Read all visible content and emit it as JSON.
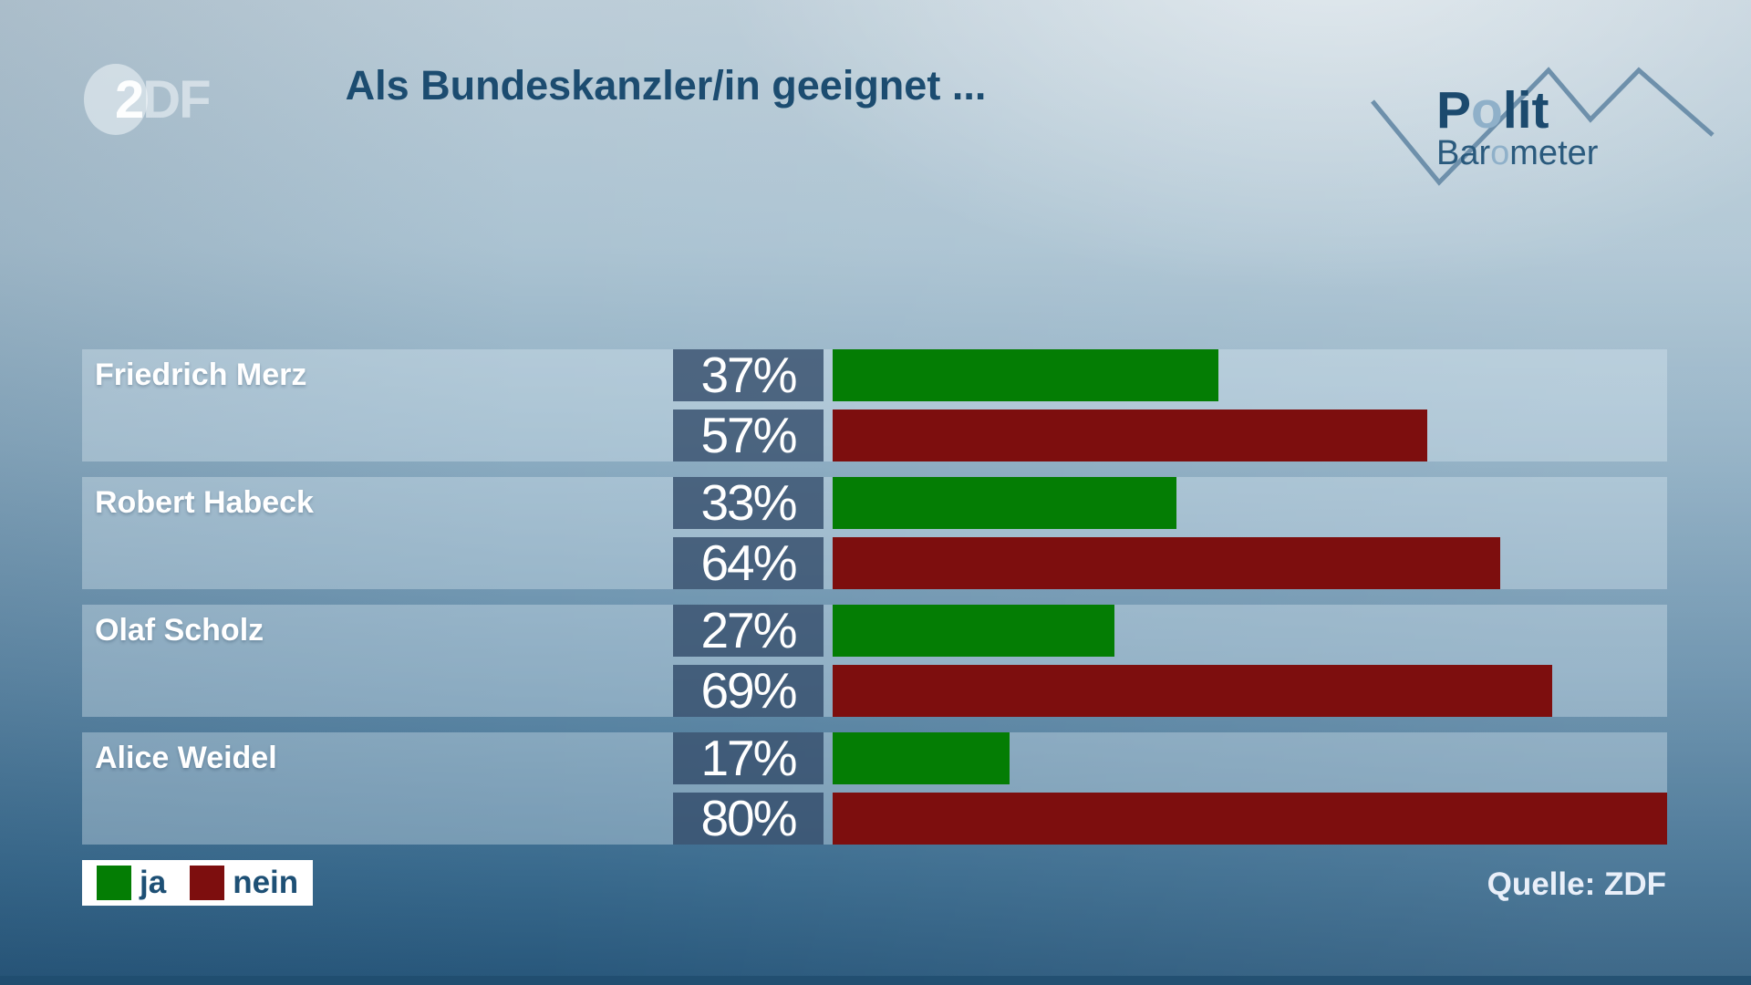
{
  "header": {
    "zdf_logo": [
      "2",
      "DF"
    ],
    "title": "Als Bundeskanzler/in geeignet ..."
  },
  "brand": {
    "polit": [
      "P",
      "o",
      "lit"
    ],
    "barometer": [
      "Bar",
      "o",
      "meter"
    ]
  },
  "chart_data": {
    "type": "bar",
    "orientation": "horizontal",
    "title": "Als Bundeskanzler/in geeignet ...",
    "categories": [
      "Friedrich Merz",
      "Robert Habeck",
      "Olaf Scholz",
      "Alice Weidel"
    ],
    "series": [
      {
        "name": "ja",
        "color": "#047d04",
        "values": [
          37,
          33,
          27,
          17
        ]
      },
      {
        "name": "nein",
        "color": "#7d0e0e",
        "values": [
          57,
          64,
          69,
          80
        ]
      }
    ],
    "unit": "%",
    "bar_scale_max": 80,
    "grid": false,
    "legend_position": "bottom-left"
  },
  "legend": {
    "items": [
      {
        "label": "ja",
        "color": "#047d04"
      },
      {
        "label": "nein",
        "color": "#7d0e0e"
      }
    ]
  },
  "source": {
    "label": "Quelle: ZDF"
  }
}
